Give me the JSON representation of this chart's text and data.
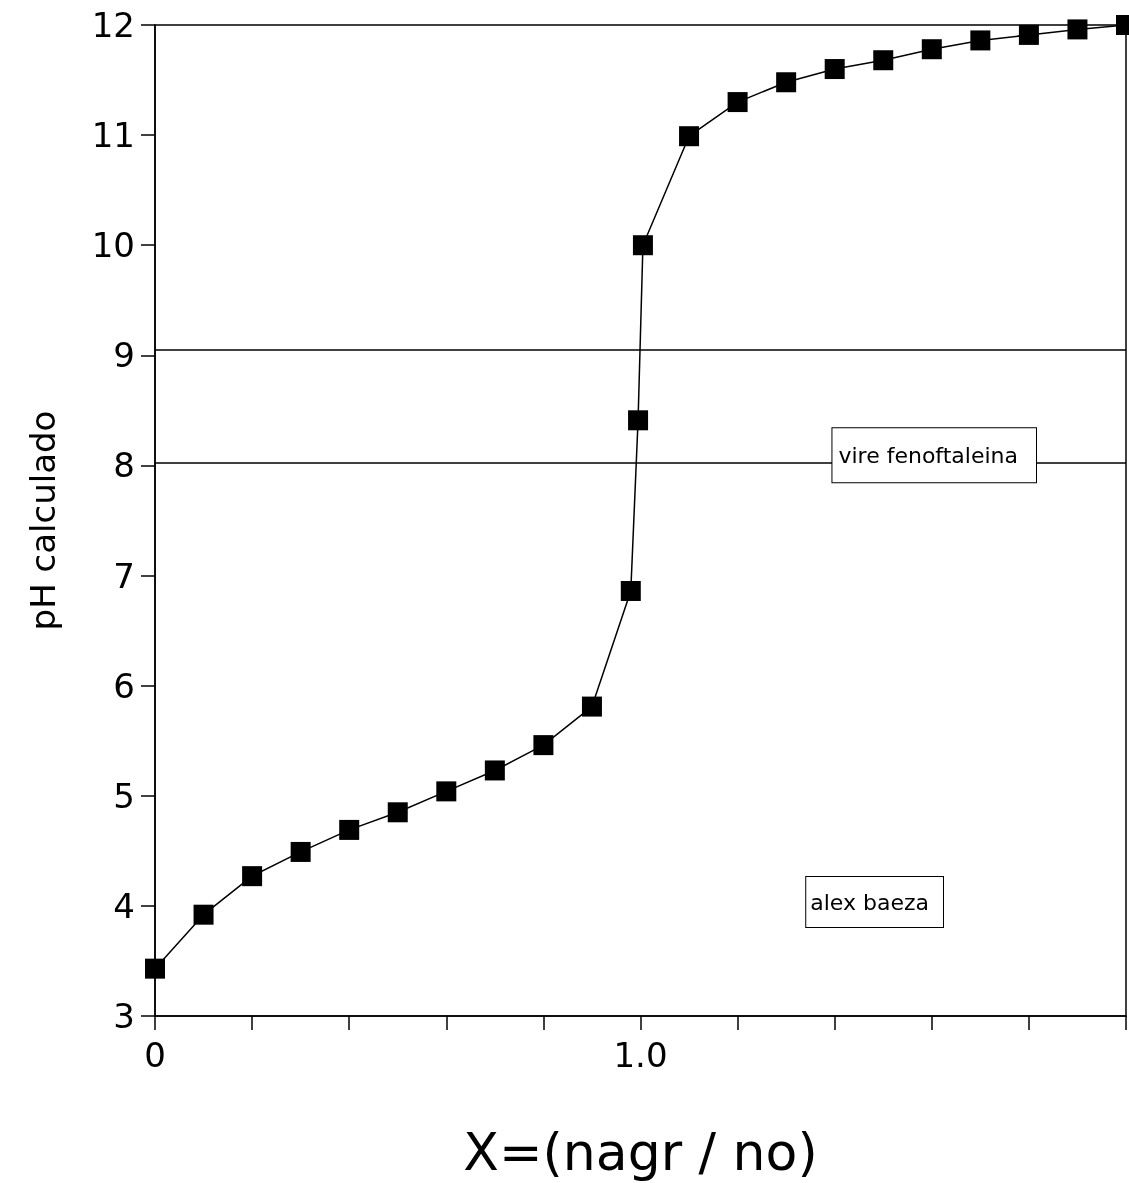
{
  "chart_data": {
    "type": "line",
    "xlabel": "X=(nagr / no)",
    "ylabel": "pH calculado",
    "x": [
      0,
      0.1,
      0.2,
      0.3,
      0.4,
      0.5,
      0.6,
      0.7,
      0.8,
      0.9,
      0.98,
      0.995,
      1.005,
      1.1,
      1.2,
      1.3,
      1.4,
      1.5,
      1.6,
      1.7,
      1.8,
      1.9,
      2.0
    ],
    "series": [
      {
        "color": "#000000",
        "values": [
          3.43,
          3.92,
          4.27,
          4.49,
          4.69,
          4.85,
          5.04,
          5.23,
          5.46,
          5.81,
          6.86,
          8.41,
          10.0,
          10.99,
          11.3,
          11.48,
          11.6,
          11.68,
          11.78,
          11.86,
          11.91,
          11.96,
          12.0
        ]
      }
    ],
    "marker": "square",
    "line_style": "solid",
    "grid": false,
    "xlim": [
      0,
      2.0
    ],
    "xticks": [
      0,
      {
        "value": 0.2,
        "label": null
      },
      {
        "value": 0.4,
        "label": null
      },
      {
        "value": 0.6,
        "label": null
      },
      {
        "value": 0.8,
        "label": null
      },
      {
        "value": 1.0,
        "label": "1.0"
      },
      {
        "value": 1.2,
        "label": null
      },
      {
        "value": 1.4,
        "label": null
      },
      {
        "value": 1.6,
        "label": null
      },
      {
        "value": 1.8,
        "label": null
      },
      {
        "value": 2.0,
        "label": null
      }
    ],
    "ylim": [
      3,
      12
    ],
    "yticks": [
      3,
      4,
      5,
      6,
      7,
      8,
      9,
      10,
      11,
      12
    ],
    "ref_lines": [
      {
        "axis": "y",
        "value": 9.05,
        "color": "#000000",
        "line_style": "solid"
      },
      {
        "axis": "y",
        "value": 8.02,
        "color": "#000000",
        "line_style": "solid",
        "label": "vire fenoftaleina"
      }
    ],
    "annotations": [
      "alex baeza"
    ]
  }
}
